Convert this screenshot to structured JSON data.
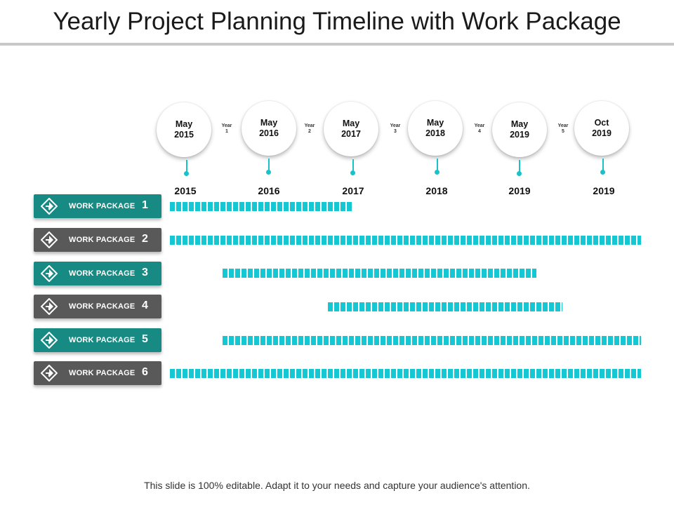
{
  "title": "Yearly Project Planning Timeline with Work Package",
  "milestones": [
    {
      "month": "May",
      "year": "2015"
    },
    {
      "month": "May",
      "year": "2016"
    },
    {
      "month": "May",
      "year": "2017"
    },
    {
      "month": "May",
      "year": "2018"
    },
    {
      "month": "May",
      "year": "2019"
    },
    {
      "month": "Oct",
      "year": "2019"
    }
  ],
  "year_tags": [
    {
      "word": "Year",
      "num": "1"
    },
    {
      "word": "Year",
      "num": "2"
    },
    {
      "word": "Year",
      "num": "3"
    },
    {
      "word": "Year",
      "num": "4"
    },
    {
      "word": "Year",
      "num": "5"
    }
  ],
  "year_labels": [
    "2015",
    "2016",
    "2017",
    "2018",
    "2019",
    "2019"
  ],
  "work_packages": [
    {
      "label": "WORK PACKAGE",
      "num": "1",
      "color": "teal"
    },
    {
      "label": "WORK PACKAGE",
      "num": "2",
      "color": "gray"
    },
    {
      "label": "WORK PACKAGE",
      "num": "3",
      "color": "teal"
    },
    {
      "label": "WORK PACKAGE",
      "num": "4",
      "color": "gray"
    },
    {
      "label": "WORK PACKAGE",
      "num": "5",
      "color": "teal"
    },
    {
      "label": "WORK PACKAGE",
      "num": "6",
      "color": "gray"
    }
  ],
  "colors": {
    "accent": "#14c7d3",
    "teal": "#178a83",
    "gray": "#595959"
  },
  "footer": "This slide is 100% editable. Adapt it to your needs and capture your audience's attention."
}
